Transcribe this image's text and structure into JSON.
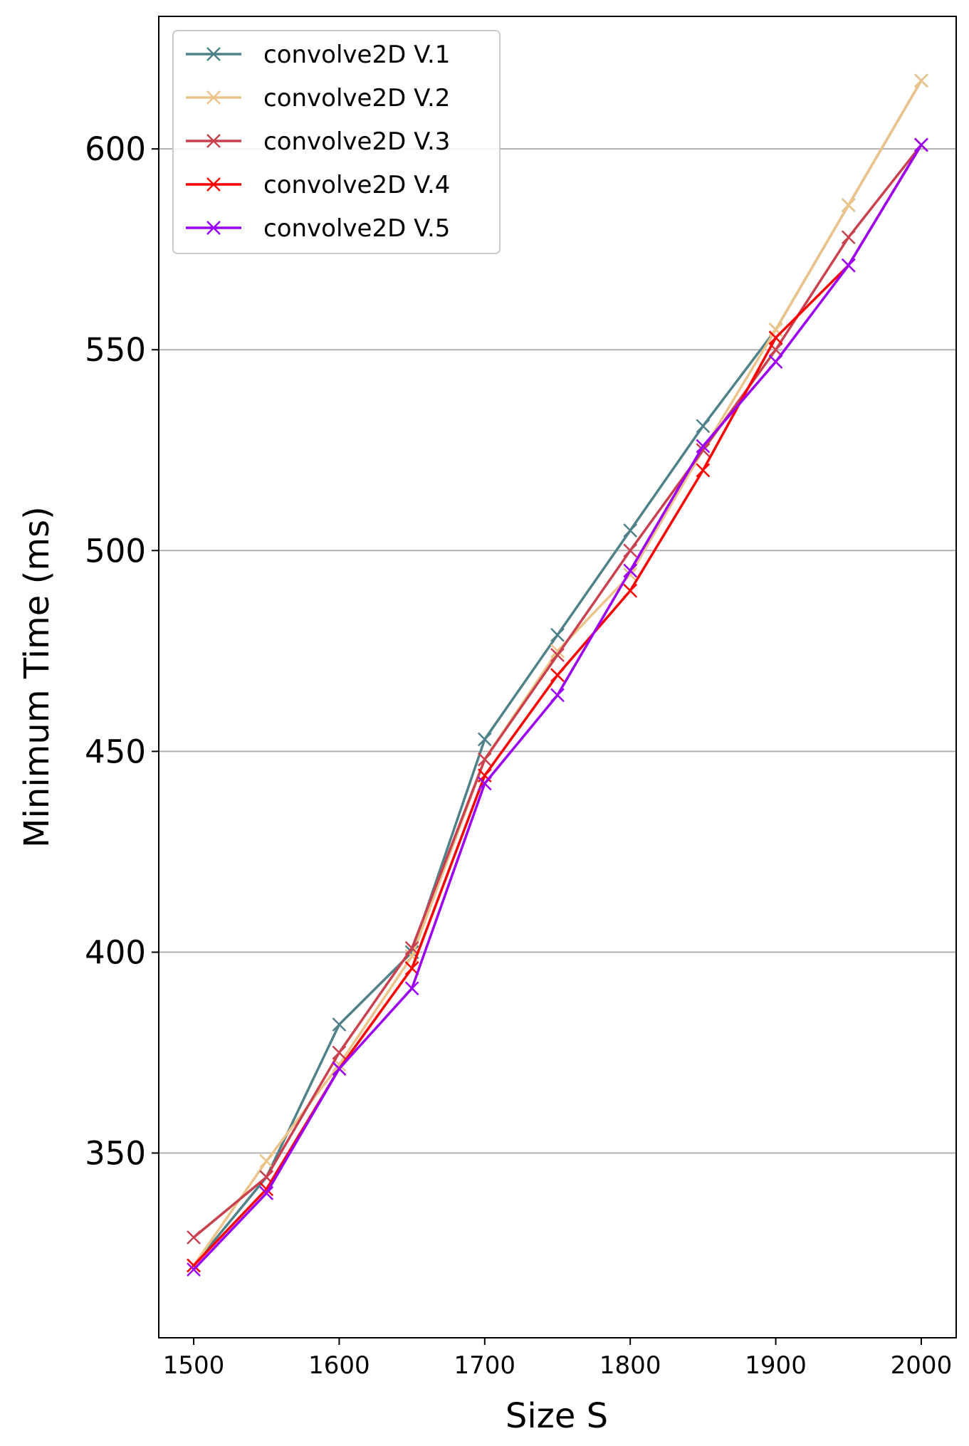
{
  "chart_data": {
    "type": "line",
    "xlabel": "Size S",
    "ylabel": "Minimum Time (ms)",
    "xlim": [
      1476,
      2024
    ],
    "ylim": [
      304,
      633
    ],
    "xticks": [
      1500,
      1600,
      1700,
      1800,
      1900,
      2000
    ],
    "yticks": [
      350,
      400,
      450,
      500,
      550,
      600
    ],
    "grid": "y-axis only",
    "legend_position": "top-left",
    "marker": "x",
    "x": [
      1500,
      1550,
      1600,
      1650,
      1700,
      1750,
      1800,
      1850,
      1900,
      1950,
      2000
    ],
    "series": [
      {
        "name": "convolve2D V.1",
        "color": "#4f8189",
        "values": [
          322,
          344,
          382,
          400,
          453,
          479,
          505,
          531,
          555,
          586,
          617
        ]
      },
      {
        "name": "convolve2D V.2",
        "color": "#ecc48a",
        "values": [
          322,
          348,
          372,
          399,
          448,
          475,
          494,
          525,
          555,
          586,
          617
        ]
      },
      {
        "name": "convolve2D V.3",
        "color": "#c9414f",
        "values": [
          329,
          344,
          375,
          401,
          448,
          474,
          500,
          525,
          550,
          578,
          601
        ]
      },
      {
        "name": "convolve2D V.4",
        "color": "#ff0000",
        "values": [
          322,
          341,
          371,
          396,
          444,
          469,
          490,
          520,
          553,
          571,
          601
        ]
      },
      {
        "name": "convolve2D V.5",
        "color": "#9b00f5",
        "values": [
          321,
          340,
          371,
          391,
          442,
          464,
          495,
          526,
          547,
          571,
          601
        ]
      }
    ]
  }
}
